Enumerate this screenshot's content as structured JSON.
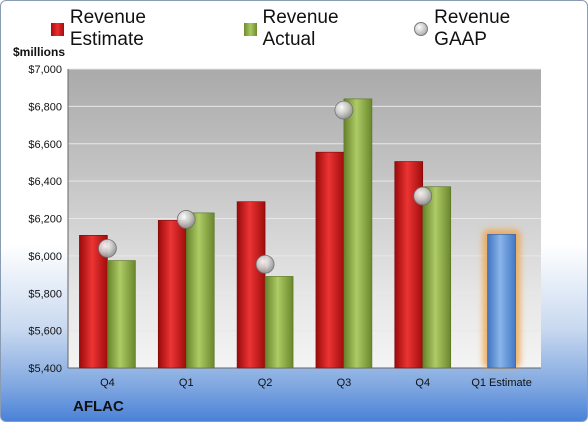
{
  "chart_data": {
    "type": "bar",
    "ylabel": "$millions",
    "ylim": [
      5400,
      7000
    ],
    "yticks": [
      "$5,400",
      "$5,600",
      "$5,800",
      "$6,000",
      "$6,200",
      "$6,400",
      "$6,600",
      "$6,800",
      "$7,000"
    ],
    "categories": [
      "Q4",
      "Q1",
      "Q2",
      "Q3",
      "Q4",
      "Q1 Estimate"
    ],
    "series": [
      {
        "name": "Revenue Estimate",
        "type": "bar",
        "color": "#d11f1f",
        "values": [
          6110,
          6190,
          6290,
          6555,
          6505,
          null
        ]
      },
      {
        "name": "Revenue Actual",
        "type": "bar",
        "color": "#8fb04a",
        "values": [
          5975,
          6230,
          5890,
          6840,
          6370,
          null
        ]
      },
      {
        "name": "Revenue GAAP",
        "type": "scatter",
        "color": "#bdbdbd",
        "values": [
          6040,
          6195,
          5955,
          6780,
          6320,
          null
        ]
      },
      {
        "name": "Q1 Estimate",
        "type": "bar",
        "color": "#6a9ad6",
        "values": [
          null,
          null,
          null,
          null,
          null,
          6115
        ]
      }
    ],
    "legend": "top",
    "grid": true
  },
  "company": "AFLAC"
}
